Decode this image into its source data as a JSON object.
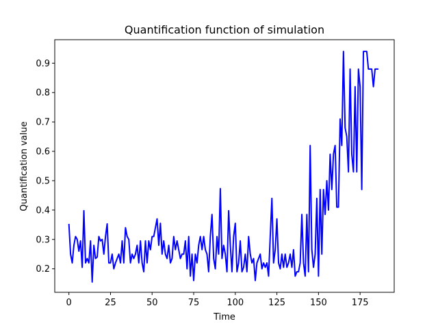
{
  "chart_data": {
    "type": "line",
    "title": "Quantification function of simulation",
    "xlabel": "Time",
    "ylabel": "Quantification value",
    "xlim": [
      -8.5,
      195.5
    ],
    "ylim": [
      0.12,
      0.98
    ],
    "xticks": [
      0,
      25,
      50,
      75,
      100,
      125,
      150,
      175
    ],
    "yticks": [
      0.2,
      0.3,
      0.4,
      0.5,
      0.6,
      0.7,
      0.8,
      0.9
    ],
    "grid": false,
    "legend": "none",
    "series": [
      {
        "color": "#0000ff",
        "x": [
          0,
          1,
          2,
          3,
          4,
          5,
          6,
          7,
          8,
          9,
          10,
          11,
          12,
          13,
          14,
          15,
          16,
          17,
          18,
          19,
          20,
          21,
          22,
          23,
          24,
          25,
          26,
          27,
          28,
          29,
          30,
          31,
          32,
          33,
          34,
          35,
          36,
          37,
          38,
          39,
          40,
          41,
          42,
          43,
          44,
          45,
          46,
          47,
          48,
          49,
          50,
          51,
          52,
          53,
          54,
          55,
          56,
          57,
          58,
          59,
          60,
          61,
          62,
          63,
          64,
          65,
          66,
          67,
          68,
          69,
          70,
          71,
          72,
          73,
          74,
          75,
          76,
          77,
          78,
          79,
          80,
          81,
          82,
          83,
          84,
          85,
          86,
          87,
          88,
          89,
          90,
          91,
          92,
          93,
          94,
          95,
          96,
          97,
          98,
          99,
          100,
          101,
          102,
          103,
          104,
          105,
          106,
          107,
          108,
          109,
          110,
          111,
          112,
          113,
          114,
          115,
          116,
          117,
          118,
          119,
          120,
          121,
          122,
          123,
          124,
          125,
          126,
          127,
          128,
          129,
          130,
          131,
          132,
          133,
          134,
          135,
          136,
          137,
          138,
          139,
          140,
          141,
          142,
          143,
          144,
          145,
          146,
          147,
          148,
          149,
          150,
          151,
          152,
          153,
          154,
          155,
          156,
          157,
          158,
          159,
          160,
          161,
          162,
          163,
          164,
          165,
          166,
          167,
          168,
          169,
          170,
          171,
          172,
          173,
          174,
          175,
          176,
          177,
          178,
          179,
          180,
          181,
          182,
          183,
          184,
          185,
          186
        ],
        "y": [
          0.353,
          0.25,
          0.22,
          0.28,
          0.31,
          0.3,
          0.26,
          0.295,
          0.205,
          0.398,
          0.22,
          0.235,
          0.22,
          0.295,
          0.155,
          0.28,
          0.235,
          0.24,
          0.31,
          0.295,
          0.3,
          0.25,
          0.31,
          0.353,
          0.22,
          0.22,
          0.25,
          0.2,
          0.22,
          0.235,
          0.25,
          0.22,
          0.295,
          0.22,
          0.34,
          0.31,
          0.3,
          0.22,
          0.25,
          0.235,
          0.25,
          0.28,
          0.22,
          0.295,
          0.22,
          0.19,
          0.295,
          0.22,
          0.295,
          0.265,
          0.31,
          0.31,
          0.34,
          0.37,
          0.28,
          0.355,
          0.25,
          0.295,
          0.25,
          0.235,
          0.28,
          0.22,
          0.235,
          0.31,
          0.265,
          0.295,
          0.265,
          0.235,
          0.25,
          0.25,
          0.295,
          0.2,
          0.31,
          0.175,
          0.25,
          0.16,
          0.25,
          0.22,
          0.28,
          0.31,
          0.265,
          0.31,
          0.265,
          0.25,
          0.19,
          0.31,
          0.385,
          0.235,
          0.2,
          0.31,
          0.25,
          0.473,
          0.235,
          0.28,
          0.25,
          0.19,
          0.398,
          0.28,
          0.19,
          0.31,
          0.355,
          0.19,
          0.22,
          0.295,
          0.19,
          0.205,
          0.25,
          0.19,
          0.31,
          0.25,
          0.22,
          0.235,
          0.16,
          0.22,
          0.235,
          0.25,
          0.2,
          0.22,
          0.205,
          0.22,
          0.175,
          0.31,
          0.44,
          0.22,
          0.265,
          0.37,
          0.22,
          0.2,
          0.25,
          0.205,
          0.25,
          0.205,
          0.22,
          0.25,
          0.205,
          0.265,
          0.175,
          0.19,
          0.19,
          0.22,
          0.385,
          0.22,
          0.175,
          0.385,
          0.19,
          0.62,
          0.265,
          0.205,
          0.25,
          0.44,
          0.175,
          0.47,
          0.25,
          0.47,
          0.385,
          0.5,
          0.4,
          0.59,
          0.47,
          0.59,
          0.62,
          0.41,
          0.41,
          0.71,
          0.62,
          0.94,
          0.68,
          0.65,
          0.53,
          0.88,
          0.59,
          0.53,
          0.82,
          0.53,
          0.88,
          0.82,
          0.47,
          0.94,
          0.94,
          0.94,
          0.88,
          0.88,
          0.88,
          0.82,
          0.88,
          0.88,
          0.88
        ]
      }
    ]
  }
}
